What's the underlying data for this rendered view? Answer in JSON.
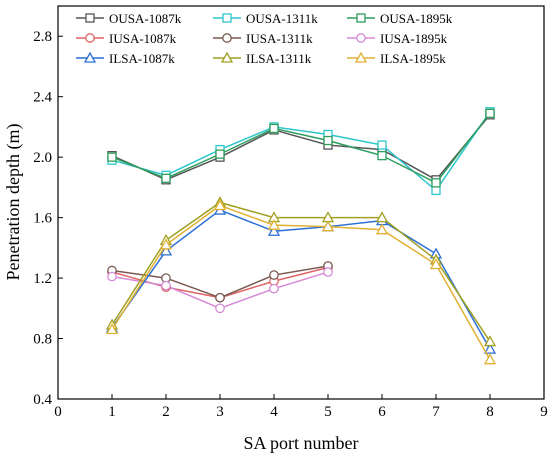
{
  "chart_data": {
    "type": "line",
    "xlabel": "SA port number",
    "ylabel": "Penetration depth (m)",
    "xlim": [
      0,
      9
    ],
    "ylim": [
      0.4,
      3.0
    ],
    "xticks": [
      0,
      1,
      2,
      3,
      4,
      5,
      6,
      7,
      8,
      9
    ],
    "yticks": [
      0.4,
      0.8,
      1.2,
      1.6,
      2.0,
      2.4,
      2.8
    ],
    "grid": false,
    "legend_position": "top",
    "series": [
      {
        "name": "OUSA-1087k",
        "marker": "square",
        "color": "#555555",
        "x": [
          1,
          2,
          3,
          4,
          5,
          6,
          7,
          8
        ],
        "y": [
          2.01,
          1.85,
          2.0,
          2.18,
          2.08,
          2.05,
          1.85,
          2.28
        ]
      },
      {
        "name": "OUSA-1311k",
        "marker": "square",
        "color": "#2cc6cc",
        "x": [
          1,
          2,
          3,
          4,
          5,
          6,
          7,
          8
        ],
        "y": [
          1.98,
          1.88,
          2.05,
          2.2,
          2.15,
          2.08,
          1.78,
          2.3
        ]
      },
      {
        "name": "OUSA-1895k",
        "marker": "square",
        "color": "#2e9e5e",
        "x": [
          1,
          2,
          3,
          4,
          5,
          6,
          7,
          8
        ],
        "y": [
          2.0,
          1.86,
          2.02,
          2.19,
          2.11,
          2.01,
          1.83,
          2.29
        ]
      },
      {
        "name": "IUSA-1087k",
        "marker": "circle",
        "color": "#e06464",
        "x": [
          1,
          2,
          3,
          4,
          5
        ],
        "y": [
          1.24,
          1.14,
          1.07,
          1.18,
          1.27
        ]
      },
      {
        "name": "IUSA-1311k",
        "marker": "circle",
        "color": "#7a5a50",
        "x": [
          1,
          2,
          3,
          4,
          5
        ],
        "y": [
          1.25,
          1.2,
          1.07,
          1.22,
          1.28
        ]
      },
      {
        "name": "IUSA-1895k",
        "marker": "circle",
        "color": "#d68ad6",
        "x": [
          1,
          2,
          3,
          4,
          5
        ],
        "y": [
          1.21,
          1.15,
          1.0,
          1.13,
          1.24
        ]
      },
      {
        "name": "ILSA-1087k",
        "marker": "triangle",
        "color": "#2a6fd6",
        "x": [
          1,
          2,
          3,
          4,
          5,
          6,
          7,
          8
        ],
        "y": [
          0.87,
          1.38,
          1.65,
          1.51,
          1.54,
          1.58,
          1.36,
          0.73
        ]
      },
      {
        "name": "ILSA-1311k",
        "marker": "triangle",
        "color": "#a0a020",
        "x": [
          1,
          2,
          3,
          4,
          5,
          6,
          7,
          8
        ],
        "y": [
          0.89,
          1.45,
          1.7,
          1.6,
          1.6,
          1.6,
          1.32,
          0.78
        ]
      },
      {
        "name": "ILSA-1895k",
        "marker": "triangle",
        "color": "#e0b030",
        "x": [
          1,
          2,
          3,
          4,
          5,
          6,
          7,
          8
        ],
        "y": [
          0.86,
          1.42,
          1.68,
          1.55,
          1.54,
          1.52,
          1.29,
          0.66
        ]
      }
    ]
  }
}
